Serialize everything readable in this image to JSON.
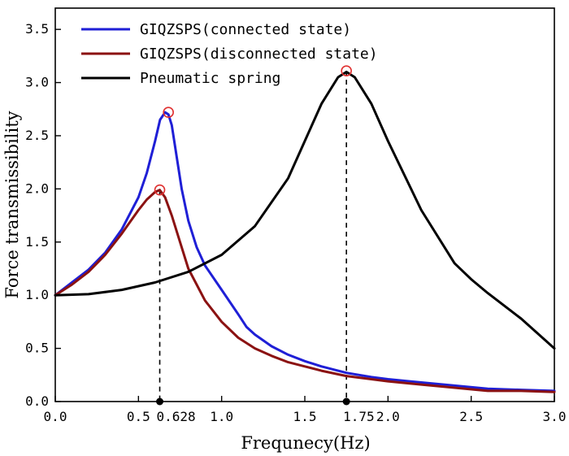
{
  "chart_data": {
    "type": "line",
    "xlabel": "Frequnecy(Hz)",
    "ylabel": "Force transmissibility",
    "xlim": [
      0,
      3.0
    ],
    "ylim": [
      0,
      3.7
    ],
    "xticks": [
      "0.0",
      "0.5",
      "1.0",
      "1.5",
      "2.0",
      "2.5",
      "3.0"
    ],
    "yticks": [
      "0.0",
      "0.5",
      "1.0",
      "1.5",
      "2.0",
      "2.5",
      "3.0",
      "3.5"
    ],
    "grid": false,
    "legend_position": "top-left",
    "series": [
      {
        "name": "GIQZSPS(connected state)",
        "color": "#1f1fd6",
        "x": [
          0,
          0.1,
          0.2,
          0.3,
          0.4,
          0.5,
          0.55,
          0.6,
          0.63,
          0.66,
          0.68,
          0.7,
          0.73,
          0.76,
          0.8,
          0.85,
          0.9,
          1.0,
          1.1,
          1.15,
          1.2,
          1.3,
          1.4,
          1.5,
          1.6,
          1.75,
          1.9,
          2.0,
          2.2,
          2.4,
          2.6,
          2.8,
          3.0
        ],
        "y": [
          1.0,
          1.12,
          1.24,
          1.4,
          1.62,
          1.92,
          2.15,
          2.45,
          2.65,
          2.72,
          2.7,
          2.6,
          2.3,
          2.0,
          1.7,
          1.45,
          1.28,
          1.05,
          0.82,
          0.7,
          0.63,
          0.52,
          0.44,
          0.38,
          0.33,
          0.27,
          0.23,
          0.21,
          0.18,
          0.15,
          0.12,
          0.11,
          0.1
        ]
      },
      {
        "name": "GIQZSPS(disconnected state)",
        "color": "#8b1212",
        "x": [
          0,
          0.1,
          0.2,
          0.3,
          0.4,
          0.5,
          0.55,
          0.6,
          0.628,
          0.66,
          0.7,
          0.75,
          0.8,
          0.9,
          1.0,
          1.1,
          1.2,
          1.3,
          1.4,
          1.5,
          1.6,
          1.75,
          1.9,
          2.0,
          2.2,
          2.4,
          2.6,
          2.8,
          3.0
        ],
        "y": [
          1.0,
          1.1,
          1.22,
          1.38,
          1.58,
          1.8,
          1.9,
          1.97,
          1.99,
          1.92,
          1.75,
          1.5,
          1.25,
          0.95,
          0.75,
          0.6,
          0.5,
          0.43,
          0.37,
          0.33,
          0.29,
          0.24,
          0.21,
          0.19,
          0.16,
          0.13,
          0.1,
          0.1,
          0.09
        ]
      },
      {
        "name": "Pneumatic spring",
        "color": "#000000",
        "x": [
          0,
          0.2,
          0.4,
          0.6,
          0.8,
          1.0,
          1.2,
          1.4,
          1.5,
          1.6,
          1.7,
          1.75,
          1.8,
          1.9,
          2.0,
          2.2,
          2.4,
          2.5,
          2.6,
          2.8,
          3.0
        ],
        "y": [
          1.0,
          1.01,
          1.05,
          1.12,
          1.22,
          1.38,
          1.65,
          2.1,
          2.45,
          2.8,
          3.05,
          3.1,
          3.05,
          2.8,
          2.45,
          1.8,
          1.3,
          1.15,
          1.02,
          0.78,
          0.5
        ]
      }
    ],
    "peaks": [
      {
        "x": 0.68,
        "y": 2.72,
        "color": "#e03030"
      },
      {
        "x": 0.628,
        "y": 1.99,
        "color": "#e03030"
      },
      {
        "x": 1.75,
        "y": 3.11,
        "color": "#e03030"
      }
    ],
    "markers": [
      {
        "x": 0.628,
        "y_top": 1.99,
        "label": "0.628"
      },
      {
        "x": 1.75,
        "y_top": 3.11,
        "label": "1.75"
      }
    ]
  }
}
